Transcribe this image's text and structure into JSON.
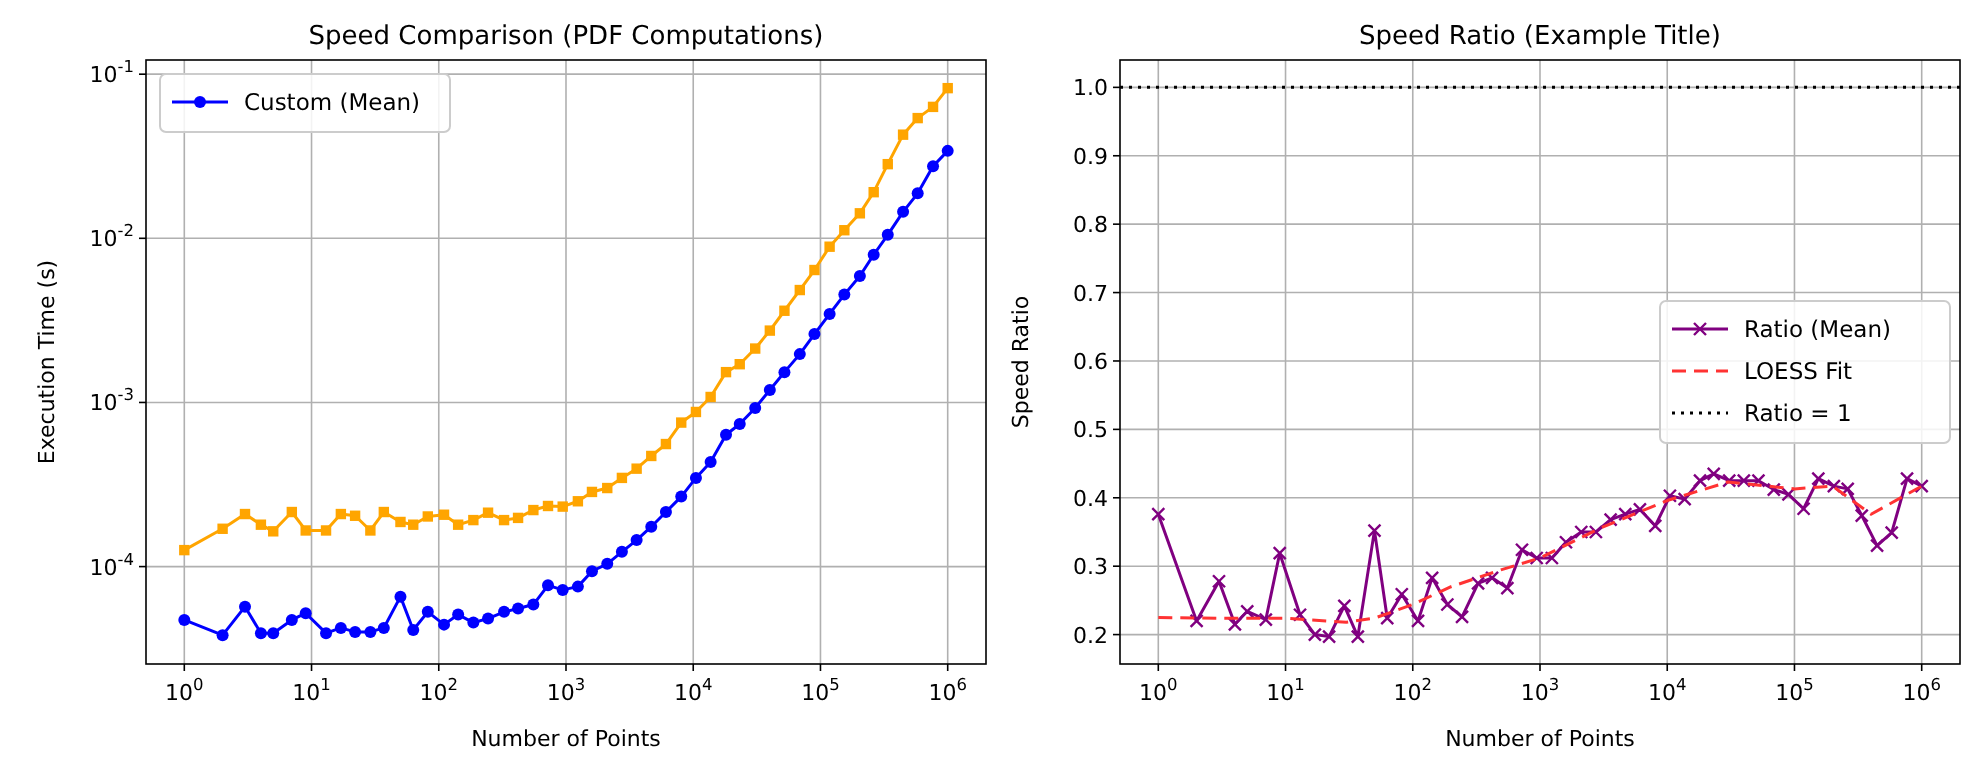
{
  "chart_data": [
    {
      "type": "line",
      "title": "Speed Comparison (PDF Computations)",
      "xlabel": "Number of Points",
      "ylabel": "Execution Time (s)",
      "log": "xy",
      "xlim": [
        0.5,
        2000000
      ],
      "ylim": [
        2.55e-05,
        0.122
      ],
      "xticks": [
        {
          "value": 1,
          "label": "10$^{0}$"
        },
        {
          "value": 10,
          "label": "10$^{1}$"
        },
        {
          "value": 100,
          "label": "10$^{2}$"
        },
        {
          "value": 1000,
          "label": "10$^{3}$"
        },
        {
          "value": 10000,
          "label": "10$^{4}$"
        },
        {
          "value": 100000,
          "label": "10$^{5}$"
        },
        {
          "value": 1000000,
          "label": "10$^{6}$"
        }
      ],
      "yticks": [
        {
          "value": 0.0001,
          "label": "10$^{-4}$"
        },
        {
          "value": 0.001,
          "label": "10$^{-3}$"
        },
        {
          "value": 0.01,
          "label": "10$^{-2}$"
        },
        {
          "value": 0.1,
          "label": "10$^{-1}$"
        }
      ],
      "grid": true,
      "legend": "top left",
      "x": [
        1,
        2,
        3,
        4,
        5,
        7,
        9,
        13,
        17,
        22,
        29,
        37,
        50,
        63,
        82,
        110,
        142,
        187,
        244,
        326,
        420,
        554,
        722,
        942,
        1240,
        1600,
        2110,
        2750,
        3590,
        4680,
        6100,
        8050,
        10500,
        13700,
        18100,
        23200,
        30700,
        40000,
        52100,
        68800,
        89700,
        118000,
        154000,
        204000,
        262000,
        338000,
        446000,
        581000,
        767000,
        1000000
      ],
      "series": [
        {
          "name": "Custom (Mean)",
          "color": "#0000ff",
          "marker": "circle",
          "values": [
            4.73e-05,
            3.82e-05,
            5.7e-05,
            3.93e-05,
            3.93e-05,
            4.73e-05,
            5.2e-05,
            3.93e-05,
            4.23e-05,
            4e-05,
            4e-05,
            4.23e-05,
            6.56e-05,
            4.11e-05,
            5.3e-05,
            4.43e-05,
            5.1e-05,
            4.56e-05,
            4.82e-05,
            5.3e-05,
            5.55e-05,
            5.87e-05,
            7.69e-05,
            7.21e-05,
            7.55e-05,
            9.37e-05,
            0.000104,
            0.000123,
            0.000145,
            0.000175,
            0.000215,
            0.000267,
            0.000347,
            0.000434,
            0.000636,
            0.000739,
            0.000925,
            0.00119,
            0.00153,
            0.00197,
            0.00261,
            0.00346,
            0.00454,
            0.00589,
            0.00794,
            0.0105,
            0.0145,
            0.0188,
            0.0275,
            0.0341
          ]
        },
        {
          "color": "#ffa500",
          "marker": "square",
          "values": [
            0.000126,
            0.00017,
            0.000209,
            0.00018,
            0.000164,
            0.000215,
            0.000166,
            0.000166,
            0.000209,
            0.000204,
            0.000166,
            0.000215,
            0.000187,
            0.00018,
            0.000202,
            0.000207,
            0.00018,
            0.000192,
            0.000213,
            0.000192,
            0.000198,
            0.000221,
            0.000234,
            0.000232,
            0.00025,
            0.000285,
            0.000301,
            0.000347,
            0.000395,
            0.000472,
            0.000558,
            0.000754,
            0.000875,
            0.00108,
            0.00153,
            0.00171,
            0.00213,
            0.00274,
            0.00362,
            0.00484,
            0.00641,
            0.00889,
            0.0112,
            0.0142,
            0.0191,
            0.0283,
            0.0428,
            0.054,
            0.0632,
            0.0822
          ]
        }
      ]
    },
    {
      "type": "line",
      "title": "Speed Ratio (Example Title)",
      "xlabel": "Number of Points",
      "ylabel": "Speed Ratio",
      "log": "x",
      "xlim": [
        0.5,
        2000000
      ],
      "ylim": [
        0.157,
        1.04
      ],
      "xticks": [
        {
          "value": 1,
          "label": "10$^{0}$"
        },
        {
          "value": 10,
          "label": "10$^{1}$"
        },
        {
          "value": 100,
          "label": "10$^{2}$"
        },
        {
          "value": 1000,
          "label": "10$^{3}$"
        },
        {
          "value": 10000,
          "label": "10$^{4}$"
        },
        {
          "value": 100000,
          "label": "10$^{5}$"
        },
        {
          "value": 1000000,
          "label": "10$^{6}$"
        }
      ],
      "yticks": [
        {
          "value": 0.2,
          "label": "0.2"
        },
        {
          "value": 0.3,
          "label": "0.3"
        },
        {
          "value": 0.4,
          "label": "0.4"
        },
        {
          "value": 0.5,
          "label": "0.5"
        },
        {
          "value": 0.6,
          "label": "0.6"
        },
        {
          "value": 0.7,
          "label": "0.7"
        },
        {
          "value": 0.8,
          "label": "0.8"
        },
        {
          "value": 0.9,
          "label": "0.9"
        },
        {
          "value": 1,
          "label": "1.0"
        }
      ],
      "grid": true,
      "legend": "right",
      "x": [
        1,
        2,
        3,
        4,
        5,
        7,
        9,
        13,
        17,
        22,
        29,
        37,
        50,
        63,
        82,
        110,
        142,
        187,
        244,
        326,
        420,
        554,
        722,
        942,
        1240,
        1600,
        2110,
        2750,
        3590,
        4680,
        6100,
        8050,
        10500,
        13700,
        18100,
        23200,
        30700,
        40000,
        52100,
        68800,
        89700,
        118000,
        154000,
        204000,
        262000,
        338000,
        446000,
        581000,
        767000,
        1000000
      ],
      "series": [
        {
          "name": "Ratio (Mean)",
          "color": "#800080",
          "marker": "cross",
          "values": [
            0.376,
            0.22,
            0.278,
            0.215,
            0.234,
            0.222,
            0.319,
            0.229,
            0.2,
            0.197,
            0.242,
            0.197,
            0.352,
            0.224,
            0.259,
            0.22,
            0.283,
            0.244,
            0.226,
            0.275,
            0.283,
            0.268,
            0.324,
            0.312,
            0.312,
            0.335,
            0.35,
            0.35,
            0.368,
            0.376,
            0.383,
            0.359,
            0.403,
            0.398,
            0.425,
            0.435,
            0.425,
            0.425,
            0.425,
            0.412,
            0.405,
            0.384,
            0.428,
            0.417,
            0.413,
            0.374,
            0.33,
            0.349,
            0.428,
            0.417
          ]
        },
        {
          "name": "LOESS Fit",
          "color": "#ff3333",
          "marker": "none",
          "line_style": "dashed",
          "x": [
            1,
            3,
            10,
            30,
            50,
            100,
            200,
            500,
            1000,
            3000,
            10000,
            30000,
            100000,
            200000,
            400000,
            1000000
          ],
          "values": [
            0.225,
            0.224,
            0.224,
            0.218,
            0.224,
            0.244,
            0.27,
            0.295,
            0.312,
            0.356,
            0.396,
            0.423,
            0.413,
            0.417,
            0.376,
            0.417
          ]
        }
      ],
      "ref_lines": [
        {
          "axis": "y",
          "value": 1,
          "label": "Ratio = 1",
          "color": "#000000",
          "line_style": "dotted"
        }
      ]
    }
  ]
}
